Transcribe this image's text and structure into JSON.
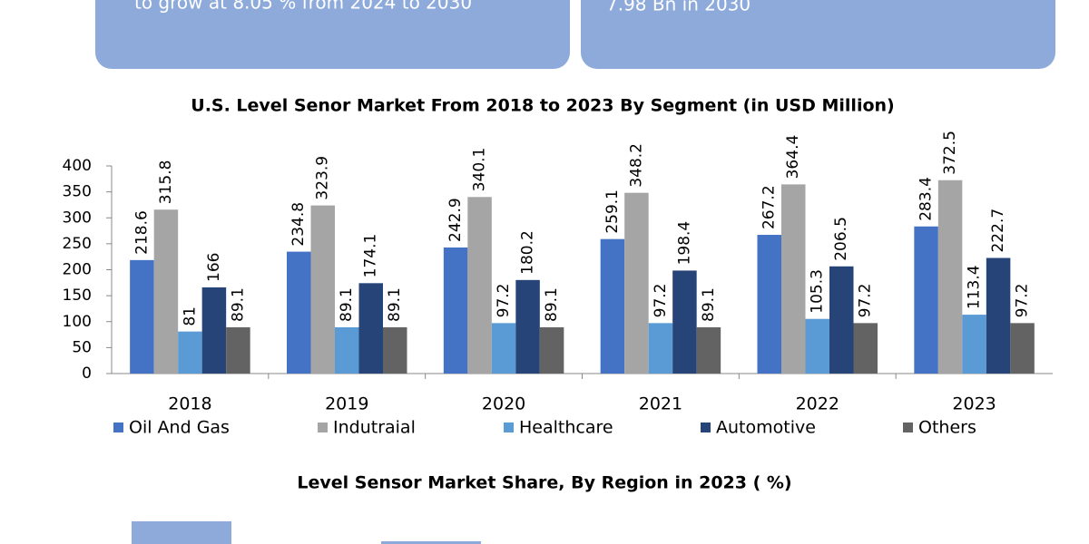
{
  "cards": [
    {
      "text": "to grow at 8.05 % from 2024 to 2030"
    },
    {
      "text": "7.98 Bn in 2030"
    }
  ],
  "chart_data": [
    {
      "type": "bar",
      "title": "U.S. Level Senor Market From 2018 to 2023 By Segment (in USD Million)",
      "categories": [
        "2018",
        "2019",
        "2020",
        "2021",
        "2022",
        "2023"
      ],
      "series": [
        {
          "name": "Oil And Gas",
          "color": "#4472c4",
          "values": [
            218.6,
            234.8,
            242.9,
            259.1,
            267.2,
            283.4
          ]
        },
        {
          "name": "Indutraial",
          "color": "#a5a5a5",
          "values": [
            315.8,
            323.9,
            340.1,
            348.2,
            364.4,
            372.5
          ]
        },
        {
          "name": "Healthcare",
          "color": "#5b9bd5",
          "values": [
            81,
            89.1,
            97.2,
            97.2,
            105.3,
            113.4
          ]
        },
        {
          "name": "Automotive",
          "color": "#264478",
          "values": [
            166,
            174.1,
            180.2,
            198.4,
            206.5,
            222.7
          ]
        },
        {
          "name": "Others",
          "color": "#636363",
          "values": [
            89.1,
            89.1,
            89.1,
            89.1,
            97.2,
            97.2
          ]
        }
      ],
      "ylim": [
        0,
        400
      ],
      "yticks": [
        0,
        50,
        100,
        150,
        200,
        250,
        300,
        350,
        400
      ],
      "grid": false,
      "legend": "bottom"
    },
    {
      "type": "bar",
      "title": "Level Sensor Market Share,  By Region in 2023 ( %)"
    }
  ]
}
